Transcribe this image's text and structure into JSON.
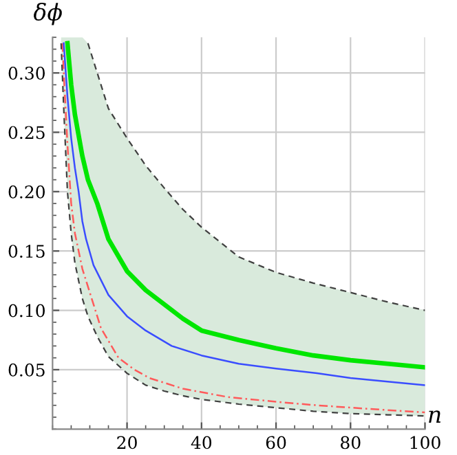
{
  "chart_data": {
    "type": "line",
    "xlabel": "n",
    "ylabel": "δϕ",
    "xlim": [
      0,
      100
    ],
    "ylim": [
      0,
      0.33
    ],
    "xticks": [
      20,
      40,
      60,
      80,
      100
    ],
    "yticks": [
      0.05,
      {
        "value": 0.1,
        "label": "0.10"
      },
      0.15,
      {
        "value": 0.2,
        "label": "0.20"
      },
      0.25,
      {
        "value": 0.3,
        "label": "0.30"
      }
    ],
    "grid": true,
    "series": [
      {
        "color": "#404040",
        "line_style": "dashed",
        "x": [
          2.3,
          3,
          4,
          5,
          6,
          8,
          9.5,
          12,
          15,
          20,
          25,
          30,
          35,
          40,
          50,
          60,
          70,
          80,
          90,
          100
        ],
        "values": [
          0.325,
          0.27,
          0.2,
          0.165,
          0.14,
          0.11,
          0.095,
          0.078,
          0.061,
          0.047,
          0.037,
          0.032,
          0.028,
          0.025,
          0.021,
          0.018,
          0.015,
          0.013,
          0.012,
          0.011
        ]
      },
      {
        "color": "#404040",
        "line_style": "dashed",
        "x": [
          9.5,
          12,
          15,
          20,
          25,
          30,
          35,
          40,
          50,
          60,
          70,
          80,
          90,
          100
        ],
        "values": [
          0.325,
          0.3,
          0.27,
          0.245,
          0.222,
          0.203,
          0.185,
          0.17,
          0.145,
          0.132,
          0.123,
          0.115,
          0.107,
          0.1
        ]
      },
      {
        "color": "#ff5a5a",
        "line_style": "dashdot",
        "x": [
          2.7,
          3,
          4,
          5,
          6,
          8,
          10,
          13,
          17.7,
          22,
          26,
          35,
          47,
          60,
          71,
          85,
          100
        ],
        "values": [
          0.325,
          0.3,
          0.24,
          0.19,
          0.165,
          0.135,
          0.115,
          0.085,
          0.06,
          0.05,
          0.043,
          0.034,
          0.027,
          0.023,
          0.02,
          0.017,
          0.014
        ]
      },
      {
        "color": "#3a4dff",
        "line_style": "solid",
        "x": [
          3,
          4,
          5,
          6,
          7,
          8,
          9,
          11,
          15,
          20,
          25,
          32,
          40,
          50,
          60,
          71,
          80,
          90,
          100
        ],
        "values": [
          0.325,
          0.28,
          0.245,
          0.22,
          0.2,
          0.175,
          0.16,
          0.138,
          0.113,
          0.095,
          0.083,
          0.07,
          0.062,
          0.055,
          0.051,
          0.047,
          0.043,
          0.04,
          0.037
        ]
      },
      {
        "color": "#00e600",
        "line_style": "solid",
        "x": [
          2.3,
          3,
          4,
          5,
          6,
          8,
          9.5,
          12,
          15,
          20,
          25,
          30,
          35,
          40,
          50,
          60,
          70,
          80,
          90,
          100
        ],
        "values": [
          null,
          null,
          0.325,
          0.29,
          0.265,
          0.23,
          0.21,
          0.19,
          0.16,
          0.133,
          0.117,
          0.105,
          0.093,
          0.083,
          0.075,
          0.068,
          0.062,
          0.058,
          0.055,
          0.052
        ],
        "lower": [
          0.325,
          0.27,
          0.2,
          0.165,
          0.14,
          0.11,
          0.095,
          0.078,
          0.061,
          0.047,
          0.037,
          0.032,
          0.028,
          0.025,
          0.021,
          0.018,
          0.015,
          0.013,
          0.012,
          0.011
        ],
        "upper": [
          0.33,
          0.33,
          0.33,
          0.33,
          0.33,
          0.33,
          0.325,
          0.3,
          0.27,
          0.245,
          0.222,
          0.203,
          0.185,
          0.17,
          0.145,
          0.132,
          0.123,
          0.115,
          0.107,
          0.1
        ]
      }
    ]
  }
}
